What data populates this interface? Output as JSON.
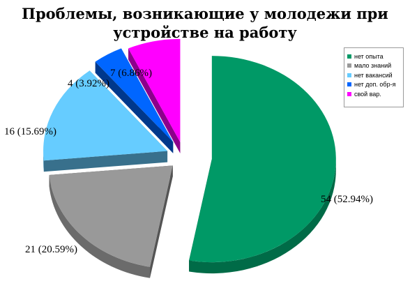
{
  "title_lines": [
    "Проблемы, возникающие у молодежи при",
    "устройстве на работу"
  ],
  "chart_data": {
    "type": "pie",
    "style": "3d-exploded",
    "title": "Проблемы, возникающие у молодежи при устройстве на работу",
    "categories": [
      "нет опыта",
      "мало знаний",
      "нет вакансий",
      "нет доп. обр-я",
      "свой вар."
    ],
    "values": [
      54,
      21,
      16,
      4,
      7
    ],
    "percents": [
      52.94,
      20.59,
      15.69,
      3.92,
      6.86
    ],
    "data_labels": [
      "54 (52.94%)",
      "21 (20.59%)",
      "16 (15.69%)",
      "4 (3.92%)",
      "7 (6.86%)"
    ],
    "colors": [
      "#009966",
      "#999999",
      "#66ccff",
      "#0066ff",
      "#ff00ff"
    ],
    "legend_position": "right",
    "grid": false
  }
}
